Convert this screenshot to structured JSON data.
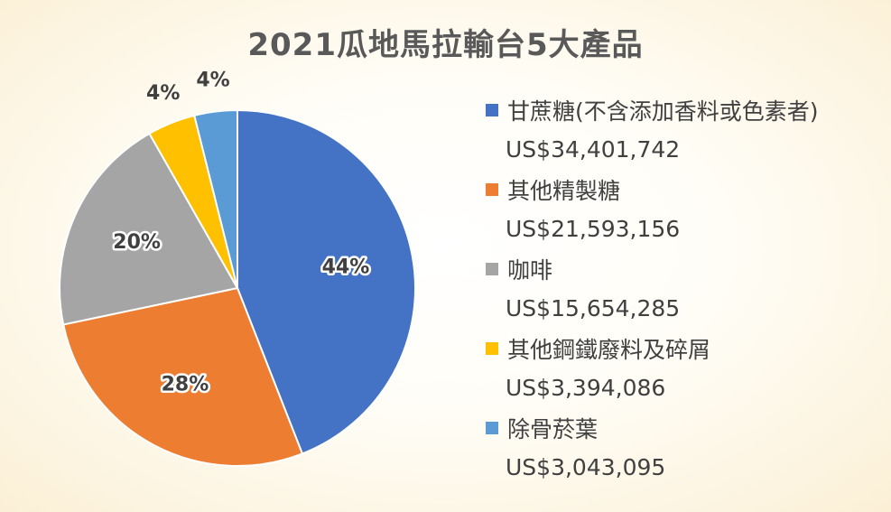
{
  "chart_data": {
    "type": "pie",
    "title": "2021瓜地馬拉輸台5大產品",
    "legend_position": "right",
    "categories": [
      "甘蔗糖(不含添加香料或色素者)",
      "其他精製糖",
      "咖啡",
      "其他鋼鐵廢料及碎屑",
      "除骨菸葉"
    ],
    "value_labels": [
      "US$34,401,742",
      "US$21,593,156",
      "US$15,654,285",
      "US$3,394,086",
      "US$3,043,095"
    ],
    "values": [
      34401742,
      21593156,
      15654285,
      3394086,
      3043095
    ],
    "percent_labels": [
      "44%",
      "28%",
      "20%",
      "4%",
      "4%"
    ],
    "colors": [
      "#4472C4",
      "#ED7D31",
      "#A5A5A5",
      "#FFC000",
      "#5B9BD5"
    ]
  }
}
